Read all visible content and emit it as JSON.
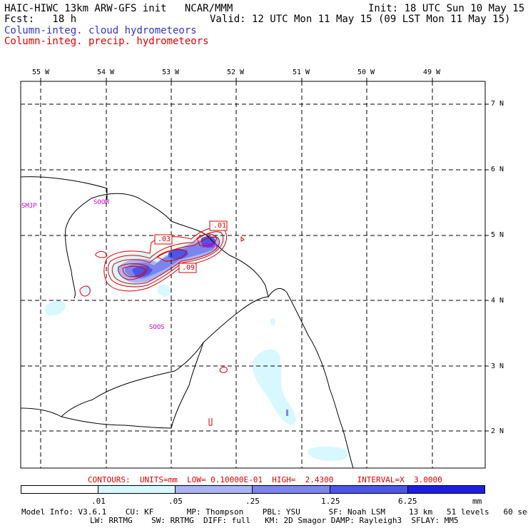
{
  "header": {
    "title_line1_left": "HAIC-HIWC 13km ARW-GFS init   NCAR/MMM",
    "title_line2_left": "Fcst:   18 h",
    "title_line1_right": "Init: 18 UTC Sun 10 May 15",
    "title_line2_right": "Valid: 12 UTC Mon 11 May 15 (09 LST Mon 11 May 15)",
    "legend_cloud": "Column-integ. cloud hydrometeors",
    "legend_precip": "Column-integ. precip. hydrometeors"
  },
  "axes": {
    "lon_labels": [
      "55 W",
      "54 W",
      "53 W",
      "52 W",
      "51 W",
      "50 W",
      "49 W"
    ],
    "lat_labels": [
      "7 N",
      "6 N",
      "5 N",
      "4 N",
      "3 N",
      "2 N"
    ]
  },
  "stations": [
    "SMJP",
    "SOOM",
    "SOOA",
    "SOOS"
  ],
  "contour_labels": [
    ".01",
    ".03",
    ".09"
  ],
  "contour_info": "CONTOURS:  UNITS=mm  LOW= 0.10000E-01  HIGH=  2.4300     INTERVAL=X  3.0000",
  "colorbar": {
    "labels": [
      ".01",
      ".05",
      ".25",
      "1.25",
      "6.25"
    ],
    "unit": "mm",
    "colors": [
      "#ffffff",
      "#d8f8ff",
      "#aab4f6",
      "#7c84f0",
      "#4c55ea",
      "#1d1ee4"
    ]
  },
  "model_info": {
    "line1": "Model Info: V3.6.1    CU: KF       MP: Thompson    PBL: YSU      SF: Noah LSM     13 km   51 levels   60 sec",
    "line2": "LW: RRTMG    SW: RRTMG  DIFF: full   KM: 2D Smagor DAMP: Rayleigh3  SFLAY: MM5"
  }
}
